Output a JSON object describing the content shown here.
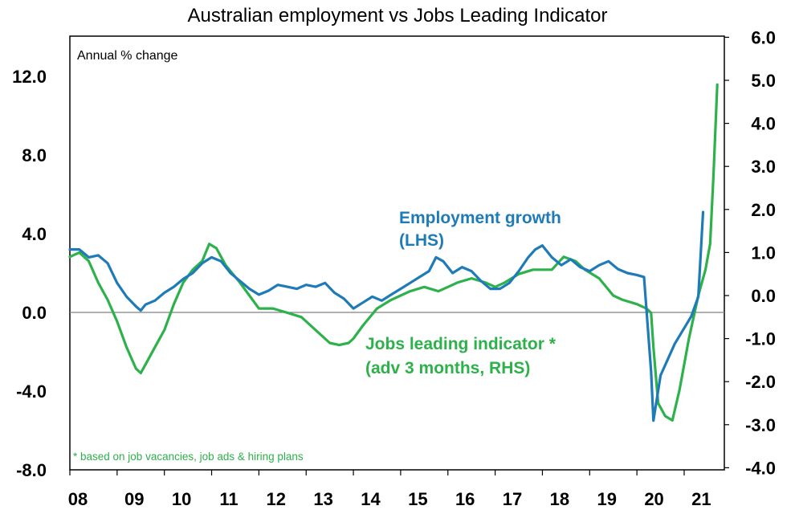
{
  "chart_data": {
    "type": "line",
    "title": "Australian employment vs Jobs Leading Indicator",
    "y_left_unit_note": "Annual % change",
    "footnote": "* based on job vacancies, job ads & hiring plans",
    "x_ticks": [
      "08",
      "09",
      "10",
      "11",
      "12",
      "13",
      "14",
      "15",
      "16",
      "17",
      "18",
      "19",
      "20",
      "21"
    ],
    "y_left": {
      "ticks": [
        "12.0",
        "8.0",
        "4.0",
        "0.0",
        "-4.0",
        "-8.0"
      ],
      "values": [
        12,
        8,
        4,
        0,
        -4,
        -8
      ],
      "range": [
        -8,
        14
      ]
    },
    "y_right": {
      "ticks": [
        "6.0",
        "5.0",
        "4.0",
        "3.0",
        "2.0",
        "1.0",
        "0.0",
        "-1.0",
        "-2.0",
        "-3.0",
        "-4.0"
      ],
      "values": [
        6,
        5,
        4,
        3,
        2,
        1,
        0,
        -1,
        -2,
        -3,
        -4
      ],
      "range": [
        -4,
        6
      ]
    },
    "x_range": [
      2008.0,
      2021.85
    ],
    "grid": false,
    "colors": {
      "employment": "#1f7bb8",
      "jobs_indicator": "#2db14a"
    },
    "series": [
      {
        "name": "Employment growth (LHS)",
        "label_lines": [
          "Employment growth",
          "(LHS)"
        ],
        "axis": "left",
        "x": [
          2008.0,
          2008.2,
          2008.4,
          2008.6,
          2008.8,
          2009.0,
          2009.2,
          2009.4,
          2009.5,
          2009.6,
          2009.8,
          2010.0,
          2010.2,
          2010.4,
          2010.6,
          2010.8,
          2011.0,
          2011.2,
          2011.4,
          2011.6,
          2011.8,
          2012.0,
          2012.2,
          2012.4,
          2012.6,
          2012.8,
          2013.0,
          2013.2,
          2013.4,
          2013.6,
          2013.8,
          2014.0,
          2014.2,
          2014.4,
          2014.6,
          2014.8,
          2015.0,
          2015.2,
          2015.4,
          2015.6,
          2015.75,
          2015.9,
          2016.1,
          2016.3,
          2016.5,
          2016.7,
          2016.9,
          2017.1,
          2017.3,
          2017.5,
          2017.7,
          2017.85,
          2018.0,
          2018.2,
          2018.4,
          2018.6,
          2018.8,
          2019.0,
          2019.2,
          2019.4,
          2019.6,
          2019.8,
          2020.0,
          2020.15,
          2020.3,
          2020.35,
          2020.5,
          2020.65,
          2020.8,
          2021.0,
          2021.15,
          2021.3,
          2021.4
        ],
        "y": [
          3.2,
          3.2,
          2.8,
          2.9,
          2.5,
          1.5,
          0.8,
          0.3,
          0.1,
          0.4,
          0.6,
          1.0,
          1.3,
          1.7,
          2.0,
          2.5,
          2.8,
          2.6,
          2.0,
          1.6,
          1.2,
          0.9,
          1.1,
          1.4,
          1.3,
          1.2,
          1.4,
          1.3,
          1.5,
          1.0,
          0.7,
          0.2,
          0.5,
          0.8,
          0.6,
          0.9,
          1.2,
          1.5,
          1.8,
          2.1,
          2.8,
          2.6,
          2.0,
          2.3,
          2.1,
          1.6,
          1.2,
          1.2,
          1.5,
          2.1,
          2.8,
          3.2,
          3.4,
          2.8,
          2.4,
          2.7,
          2.3,
          2.1,
          2.4,
          2.6,
          2.2,
          2.0,
          1.9,
          1.8,
          -3.0,
          -5.5,
          -3.2,
          -2.4,
          -1.6,
          -0.8,
          -0.2,
          0.8,
          5.1
        ]
      },
      {
        "name": "Jobs leading indicator * (adv 3 months, RHS)",
        "label_lines": [
          "Jobs leading indicator *",
          "(adv 3 months, RHS)"
        ],
        "axis": "right",
        "x": [
          2008.0,
          2008.2,
          2008.4,
          2008.6,
          2008.8,
          2009.0,
          2009.2,
          2009.4,
          2009.5,
          2009.6,
          2009.8,
          2010.0,
          2010.2,
          2010.4,
          2010.6,
          2010.8,
          2010.95,
          2011.1,
          2011.3,
          2011.6,
          2011.8,
          2012.0,
          2012.3,
          2012.6,
          2012.9,
          2013.2,
          2013.5,
          2013.7,
          2013.9,
          2014.0,
          2014.2,
          2014.5,
          2014.8,
          2015.0,
          2015.2,
          2015.5,
          2015.8,
          2016.0,
          2016.2,
          2016.5,
          2016.8,
          2017.0,
          2017.2,
          2017.5,
          2017.8,
          2018.0,
          2018.2,
          2018.45,
          2018.7,
          2018.9,
          2019.2,
          2019.5,
          2019.7,
          2020.0,
          2020.2,
          2020.3,
          2020.35,
          2020.45,
          2020.6,
          2020.75,
          2020.9,
          2021.1,
          2021.3,
          2021.45,
          2021.55,
          2021.62,
          2021.7
        ],
        "y": [
          0.9,
          1.0,
          0.8,
          0.3,
          -0.1,
          -0.6,
          -1.2,
          -1.7,
          -1.8,
          -1.6,
          -1.2,
          -0.8,
          -0.2,
          0.3,
          0.6,
          0.8,
          1.2,
          1.1,
          0.7,
          0.3,
          0.0,
          -0.3,
          -0.3,
          -0.4,
          -0.5,
          -0.8,
          -1.1,
          -1.15,
          -1.1,
          -1.0,
          -0.7,
          -0.3,
          -0.1,
          0.0,
          0.1,
          0.2,
          0.1,
          0.2,
          0.3,
          0.4,
          0.3,
          0.2,
          0.3,
          0.5,
          0.6,
          0.6,
          0.6,
          0.9,
          0.8,
          0.6,
          0.4,
          0.0,
          -0.1,
          -0.2,
          -0.3,
          -0.4,
          -1.2,
          -2.5,
          -2.8,
          -2.9,
          -2.2,
          -1.0,
          0.0,
          0.6,
          1.2,
          2.8,
          4.9
        ]
      }
    ]
  }
}
